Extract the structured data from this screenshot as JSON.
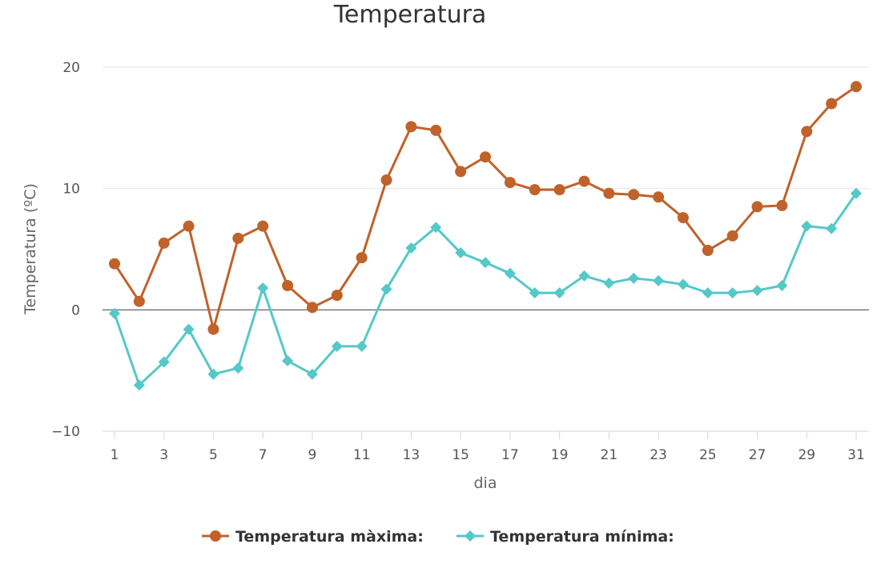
{
  "chart_data": {
    "type": "line",
    "title": "Temperatura",
    "xlabel": "dia",
    "ylabel": "Temperatura (ºC)",
    "x": [
      1,
      2,
      3,
      4,
      5,
      6,
      7,
      8,
      9,
      10,
      11,
      12,
      13,
      14,
      15,
      16,
      17,
      18,
      19,
      20,
      21,
      22,
      23,
      24,
      25,
      26,
      27,
      28,
      29,
      30,
      31
    ],
    "xticks": [
      1,
      3,
      5,
      7,
      9,
      11,
      13,
      15,
      17,
      19,
      21,
      23,
      25,
      27,
      29,
      31
    ],
    "yticks": [
      -10,
      0,
      10,
      20
    ],
    "ytick_labels": [
      "−10",
      "0",
      "10",
      "20"
    ],
    "ylim": [
      -10,
      20
    ],
    "xlim": [
      1,
      31
    ],
    "grid": true,
    "legend_placement": "bottom",
    "series": [
      {
        "name": "Temperatura màxima:",
        "color": "#c0622a",
        "marker": "circle",
        "values": [
          3.8,
          0.7,
          5.5,
          6.9,
          -1.6,
          5.9,
          6.9,
          2.0,
          0.2,
          1.2,
          4.3,
          10.7,
          15.1,
          14.8,
          11.4,
          12.6,
          10.5,
          9.9,
          9.9,
          10.6,
          9.6,
          9.5,
          9.3,
          7.6,
          4.9,
          6.1,
          8.5,
          8.6,
          14.7,
          17.0,
          18.4
        ]
      },
      {
        "name": "Temperatura mínima:",
        "color": "#55c8c8",
        "marker": "diamond",
        "values": [
          -0.3,
          -6.2,
          -4.3,
          -1.6,
          -5.3,
          -4.8,
          1.8,
          -4.2,
          -5.3,
          -3.0,
          -3.0,
          1.7,
          5.1,
          6.8,
          4.7,
          3.9,
          3.0,
          1.4,
          1.4,
          2.8,
          2.2,
          2.6,
          2.4,
          2.1,
          1.4,
          1.4,
          1.6,
          2.0,
          6.9,
          6.7,
          9.6
        ]
      }
    ]
  }
}
